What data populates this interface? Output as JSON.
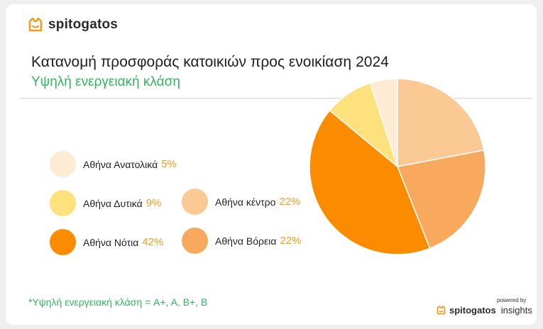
{
  "brand": {
    "name": "spitogatos",
    "icon": "cat-logo-icon",
    "color": "#f39a1f"
  },
  "title": {
    "text": "Κατανομή προσφοράς κατοικιών προς ενοικίαση",
    "year": "2024"
  },
  "subtitle": "Υψηλή ενεργειακή κλάση",
  "footnote": "*Υψηλή ενεργειακή κλάση = A+, A, B+, B",
  "powered": {
    "label": "powered by",
    "brand": "spitogatos",
    "suffix": "insights"
  },
  "legend": [
    {
      "label": "Αθήνα Ανατολικά",
      "pct": "5%",
      "color": "#fdebd3"
    },
    {
      "label": "Αθήνα Δυτικά",
      "pct": "9%",
      "color": "#fde17c"
    },
    {
      "label": "Αθήνα Νότια",
      "pct": "42%",
      "color": "#fb8c00"
    },
    {
      "label": "Αθήνα κέντρο",
      "pct": "22%",
      "color": "#fbc994"
    },
    {
      "label": "Αθήνα Βόρεια",
      "pct": "22%",
      "color": "#f8a95d"
    }
  ],
  "chart_data": {
    "type": "pie",
    "title": "Κατανομή προσφοράς κατοικιών προς ενοικίαση 2024",
    "subtitle": "Υψηλή ενεργειακή κλάση",
    "legend_position": "left",
    "slices": [
      {
        "label": "Αθήνα κέντρο",
        "value": 22,
        "color": "#fbc994"
      },
      {
        "label": "Αθήνα Βόρεια",
        "value": 22,
        "color": "#f8a95d"
      },
      {
        "label": "Αθήνα Νότια",
        "value": 42,
        "color": "#fb8c00"
      },
      {
        "label": "Αθήνα Δυτικά",
        "value": 9,
        "color": "#fde17c"
      },
      {
        "label": "Αθήνα Ανατολικά",
        "value": 5,
        "color": "#fdebd3"
      }
    ]
  }
}
